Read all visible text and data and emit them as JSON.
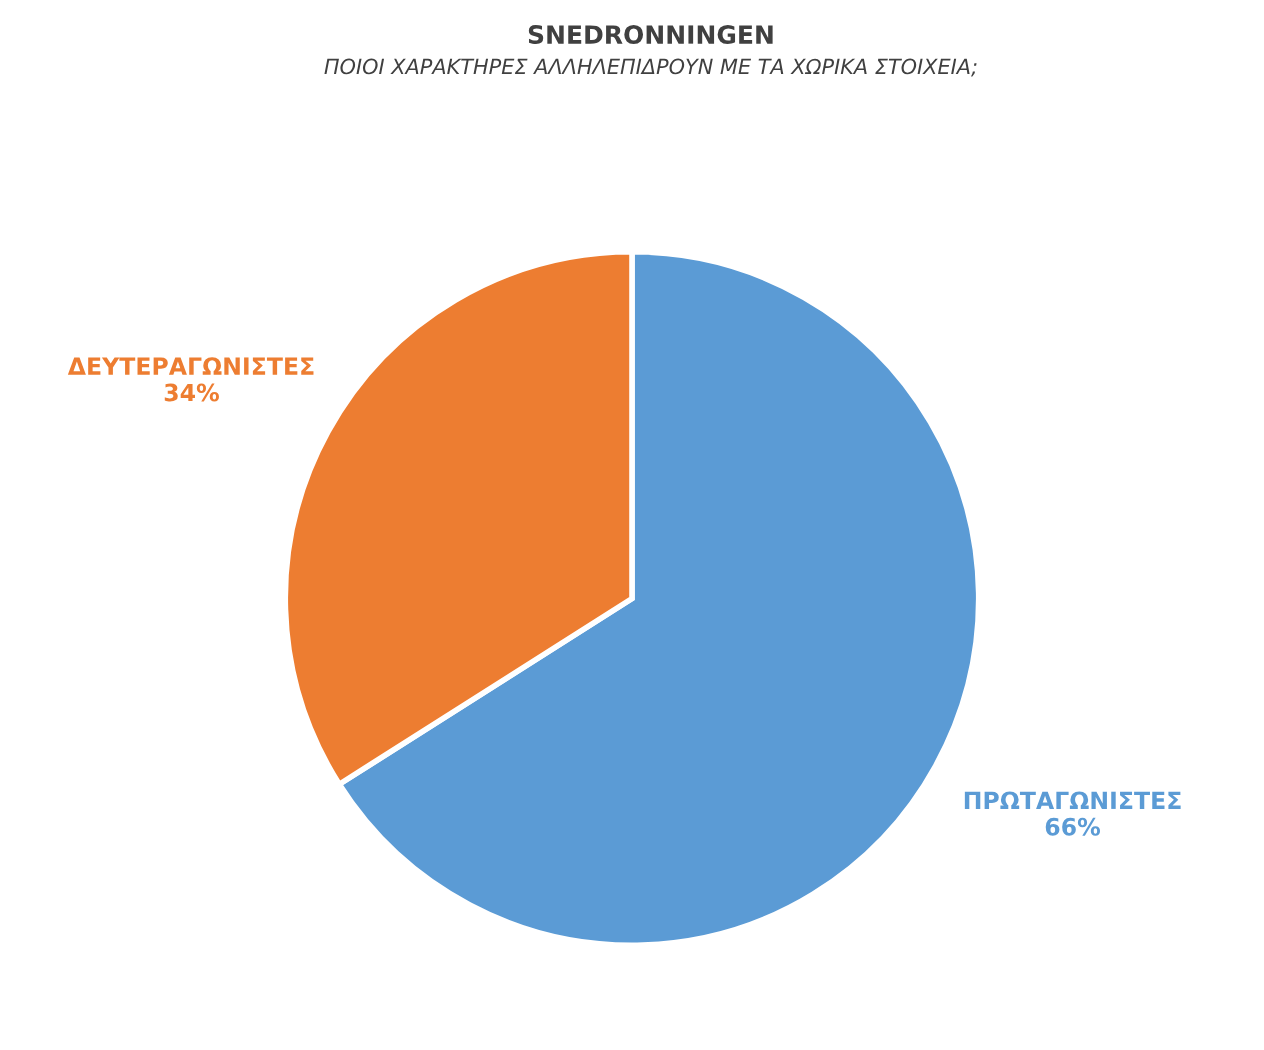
{
  "chart_data": {
    "type": "pie",
    "title": "SNEDRONNINGEN",
    "subtitle": "ΠΟΙΟΙ ΧΑΡΑΚΤΗΡΕΣ ΑΛΛΗΛΕΠΙΔΡΟΥΝ ΜΕ ΤΑ ΧΩΡΙΚΑ ΣΤΟΙΧΕΙΑ;",
    "categories": [
      "ΠΡΩΤΑΓΩΝΙΣΤΕΣ",
      "ΔΕΥΤΕΡΑΓΩΝΙΣΤΕΣ"
    ],
    "values": [
      66,
      34
    ],
    "colors": [
      "#5b9bd5",
      "#ed7d31"
    ],
    "value_labels": [
      "66%",
      "34%"
    ]
  }
}
